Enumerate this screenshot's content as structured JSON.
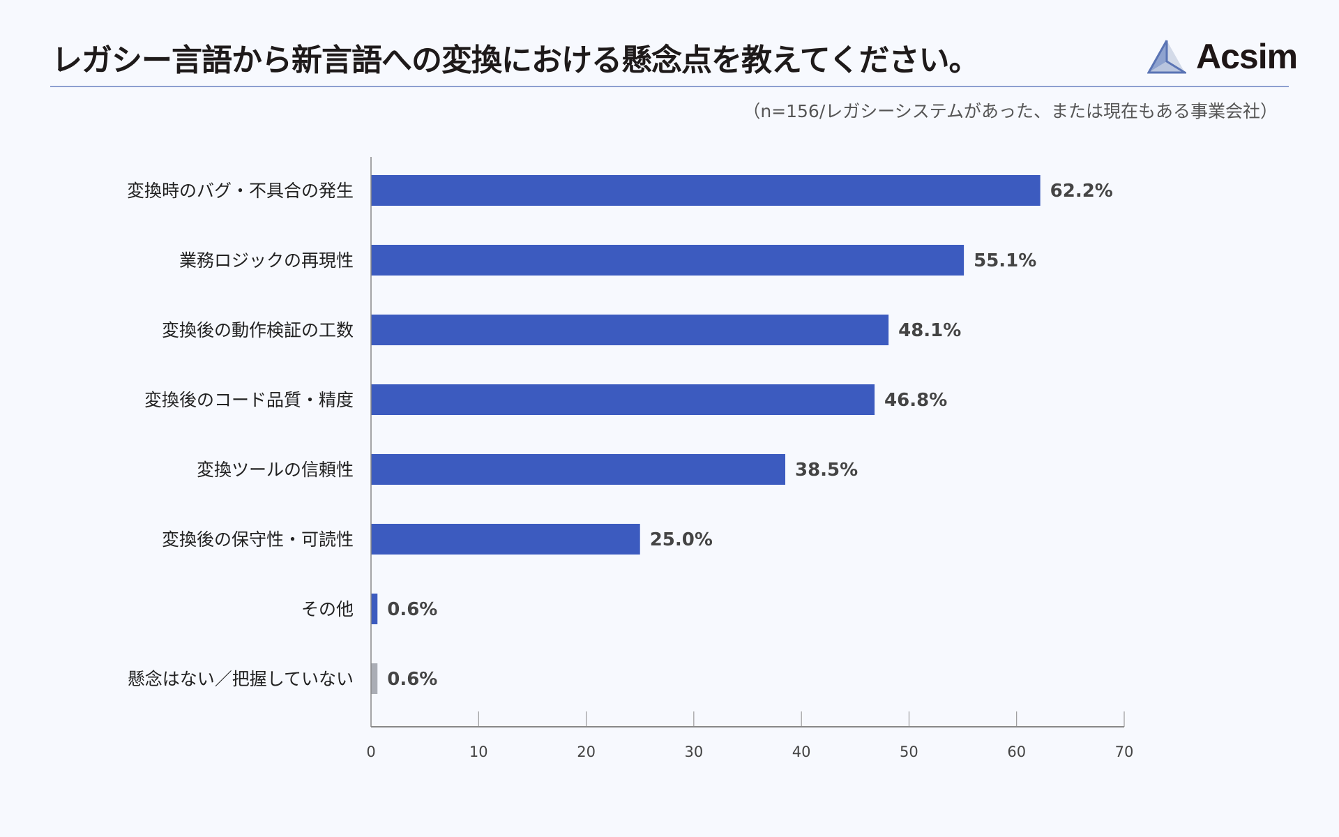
{
  "header": {
    "title": "レガシー言語から新言語への変換における懸念点を教えてください。",
    "subtitle": "（n=156/レガシーシステムがあった、または現在もある事業会社）",
    "logo_text": "Acsim"
  },
  "chart_data": {
    "type": "bar",
    "orientation": "horizontal",
    "categories": [
      "変換時のバグ・不具合の発生",
      "業務ロジックの再現性",
      "変換後の動作検証の工数",
      "変換後のコード品質・精度",
      "変換ツールの信頼性",
      "変換後の保守性・可読性",
      "その他",
      "懸念はない／把握していない"
    ],
    "values": [
      62.2,
      55.1,
      48.1,
      46.8,
      38.5,
      25.0,
      0.6,
      0.6
    ],
    "labels": [
      "62.2%",
      "55.1%",
      "48.1%",
      "46.8%",
      "38.5%",
      "25.0%",
      "0.6%",
      "0.6%"
    ],
    "colors": [
      "#3c5bbf",
      "#3c5bbf",
      "#3c5bbf",
      "#3c5bbf",
      "#3c5bbf",
      "#3c5bbf",
      "#3c5bbf",
      "#aaadb5"
    ],
    "xlim": [
      0,
      70
    ],
    "xticks": [
      0,
      10,
      20,
      30,
      40,
      50,
      60,
      70
    ],
    "grid": false,
    "title": "レガシー言語から新言語への変換における懸念点を教えてください。",
    "xlabel": "",
    "ylabel": ""
  }
}
